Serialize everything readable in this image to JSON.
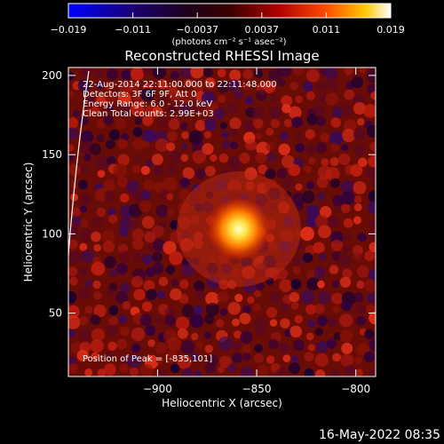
{
  "chart_data": {
    "type": "heatmap",
    "title": "Reconstructed RHESSI Image",
    "xlabel": "Heliocentric X (arcsec)",
    "ylabel": "Heliocentric Y (arcsec)",
    "xlim": [
      -945,
      -790
    ],
    "ylim": [
      10,
      205
    ],
    "x_ticks": [
      -900,
      -850,
      -800
    ],
    "y_ticks": [
      50,
      100,
      150,
      200
    ],
    "colorbar": {
      "label": "(photons cm⁻² s⁻¹ asec⁻²)",
      "range": [
        -0.019,
        0.019
      ],
      "ticks": [
        "−0.019",
        "−0.011",
        "−0.0037",
        "0.0037",
        "0.011",
        "0.019"
      ]
    },
    "peak": {
      "x": -835,
      "y": 101
    },
    "info_lines": [
      "22-Aug-2014 22:11:00.000 to 22:11:48.000",
      "Detectors: 3F 6F 9F, Att 0",
      "Energy Range: 6.0 - 12.0 keV",
      "Clean     Total counts: 2.99E+03"
    ],
    "peak_label": "Position of Peak = [-835,101]"
  },
  "footer": {
    "timestamp": "16-May-2022 08:35"
  },
  "colors": {
    "background": "#000000",
    "axis": "#ffffff",
    "limb": "#ffffff"
  }
}
